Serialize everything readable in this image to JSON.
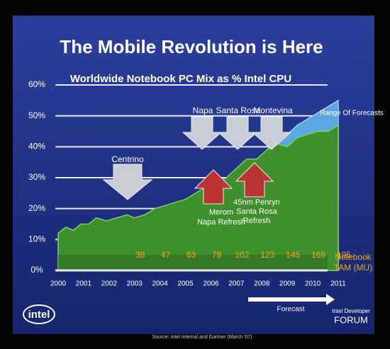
{
  "chart_data": {
    "type": "area",
    "title": "The Mobile Revolution is Here",
    "subtitle": "Worldwide Notebook PC Mix as % Intel CPU",
    "x": [
      2000,
      2000.3,
      2000.6,
      2000.9,
      2001.2,
      2001.5,
      2001.9,
      2002.3,
      2002.7,
      2003.0,
      2003.4,
      2003.8,
      2004.2,
      2004.6,
      2005.0,
      2005.4,
      2005.8,
      2006.2,
      2006.6,
      2007.0,
      2007.4,
      2007.8,
      2008.2,
      2008.6,
      2009.0,
      2009.4,
      2009.8,
      2010.2,
      2010.6,
      2011.0
    ],
    "series": [
      {
        "color": "#3f8f2c",
        "values": [
          12,
          14,
          13,
          15,
          15,
          17,
          16,
          17,
          18,
          17,
          18,
          20,
          21,
          22,
          23,
          25,
          27,
          28,
          30,
          33,
          36,
          36,
          39,
          41,
          40,
          43,
          44,
          45,
          45,
          47
        ]
      },
      {
        "name": "Range Of Forecasts",
        "color": "#5aa6e0",
        "values": [
          null,
          null,
          null,
          null,
          null,
          null,
          null,
          null,
          null,
          null,
          null,
          null,
          null,
          null,
          null,
          null,
          null,
          null,
          null,
          null,
          null,
          null,
          39,
          42,
          44,
          47,
          49,
          51,
          53,
          55
        ]
      }
    ],
    "xlim": [
      2000,
      2011
    ],
    "ylim": [
      0,
      60
    ],
    "xticks": [
      2000,
      2001,
      2002,
      2003,
      2004,
      2005,
      2006,
      2007,
      2008,
      2009,
      2010,
      2011
    ],
    "yticks": [
      {
        "value": 0,
        "label": "0%"
      },
      {
        "value": 10,
        "label": "10%"
      },
      {
        "value": 20,
        "label": "20%"
      },
      {
        "value": 30,
        "label": "30%"
      },
      {
        "value": 40,
        "label": "40%"
      },
      {
        "value": 50,
        "label": "50%"
      },
      {
        "value": 60,
        "label": "60%"
      }
    ],
    "grid": true,
    "tam": {
      "label": [
        "Notebook",
        "TAM (MU)"
      ],
      "values": [
        38,
        47,
        63,
        79,
        102,
        123,
        145,
        169,
        195
      ]
    },
    "annotations": {
      "centrino": "Centrino",
      "napa": "Napa",
      "santa_rosa": "Santa Rosa",
      "montevina": "Montevina",
      "merom": [
        "Merom",
        "Napa Refresh"
      ],
      "penryn": [
        "45nm Penryn",
        "Santa Rosa",
        "Refresh"
      ],
      "forecast": "Forecast"
    },
    "logo": "intel",
    "idf": [
      "Intel Developer",
      "FORUM"
    ],
    "source": "Source: Intel Internal and Gartner (March '07)"
  }
}
